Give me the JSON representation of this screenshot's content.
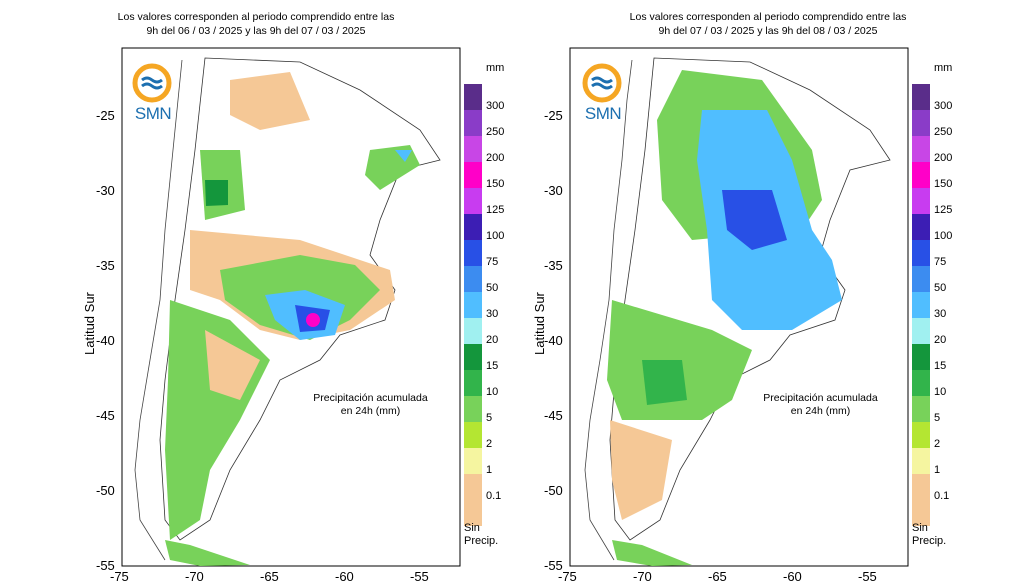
{
  "panels": [
    {
      "title_line1": "Los valores corresponden al periodo comprendido entre las",
      "title_line2": "9h del 06 / 03 / 2025  y las 9h del 07 / 03 / 2025",
      "caption_line1": "Precipitación acumulada",
      "caption_line2": "en 24h (mm)"
    },
    {
      "title_line1": "Los valores corresponden al periodo comprendido entre las",
      "title_line2": "9h del 07 / 03 / 2025  y las 9h del 08 / 03 / 2025",
      "caption_line1": "Precipitación acumulada",
      "caption_line2": "en 24h (mm)"
    }
  ],
  "logo_text": "SMN",
  "y_axis_label": "Latitud Sur",
  "y_ticks": [
    "-25",
    "-30",
    "-35",
    "-40",
    "-45",
    "-50",
    "-55"
  ],
  "x_ticks": [
    "-75",
    "-70",
    "-65",
    "-60",
    "-55"
  ],
  "legend": {
    "unit": "mm",
    "no_precip_line1": "Sin",
    "no_precip_line2": "Precip.",
    "levels": [
      {
        "label": "300",
        "color": "#5a2d8a"
      },
      {
        "label": "250",
        "color": "#8a3cc8"
      },
      {
        "label": "200",
        "color": "#c846e6"
      },
      {
        "label": "150",
        "color": "#ff00c8"
      },
      {
        "label": "125",
        "color": "#c83cf0"
      },
      {
        "label": "100",
        "color": "#3c1eb4"
      },
      {
        "label": "75",
        "color": "#2850e6"
      },
      {
        "label": "50",
        "color": "#3c8cf0"
      },
      {
        "label": "30",
        "color": "#50beff"
      },
      {
        "label": "20",
        "color": "#a0f0f0"
      },
      {
        "label": "15",
        "color": "#14963c"
      },
      {
        "label": "10",
        "color": "#32b44b"
      },
      {
        "label": "5",
        "color": "#78d25a"
      },
      {
        "label": "2",
        "color": "#b4e632"
      },
      {
        "label": "1",
        "color": "#f5f5a0"
      },
      {
        "label": "0.1",
        "color": "#f5c896"
      }
    ]
  }
}
